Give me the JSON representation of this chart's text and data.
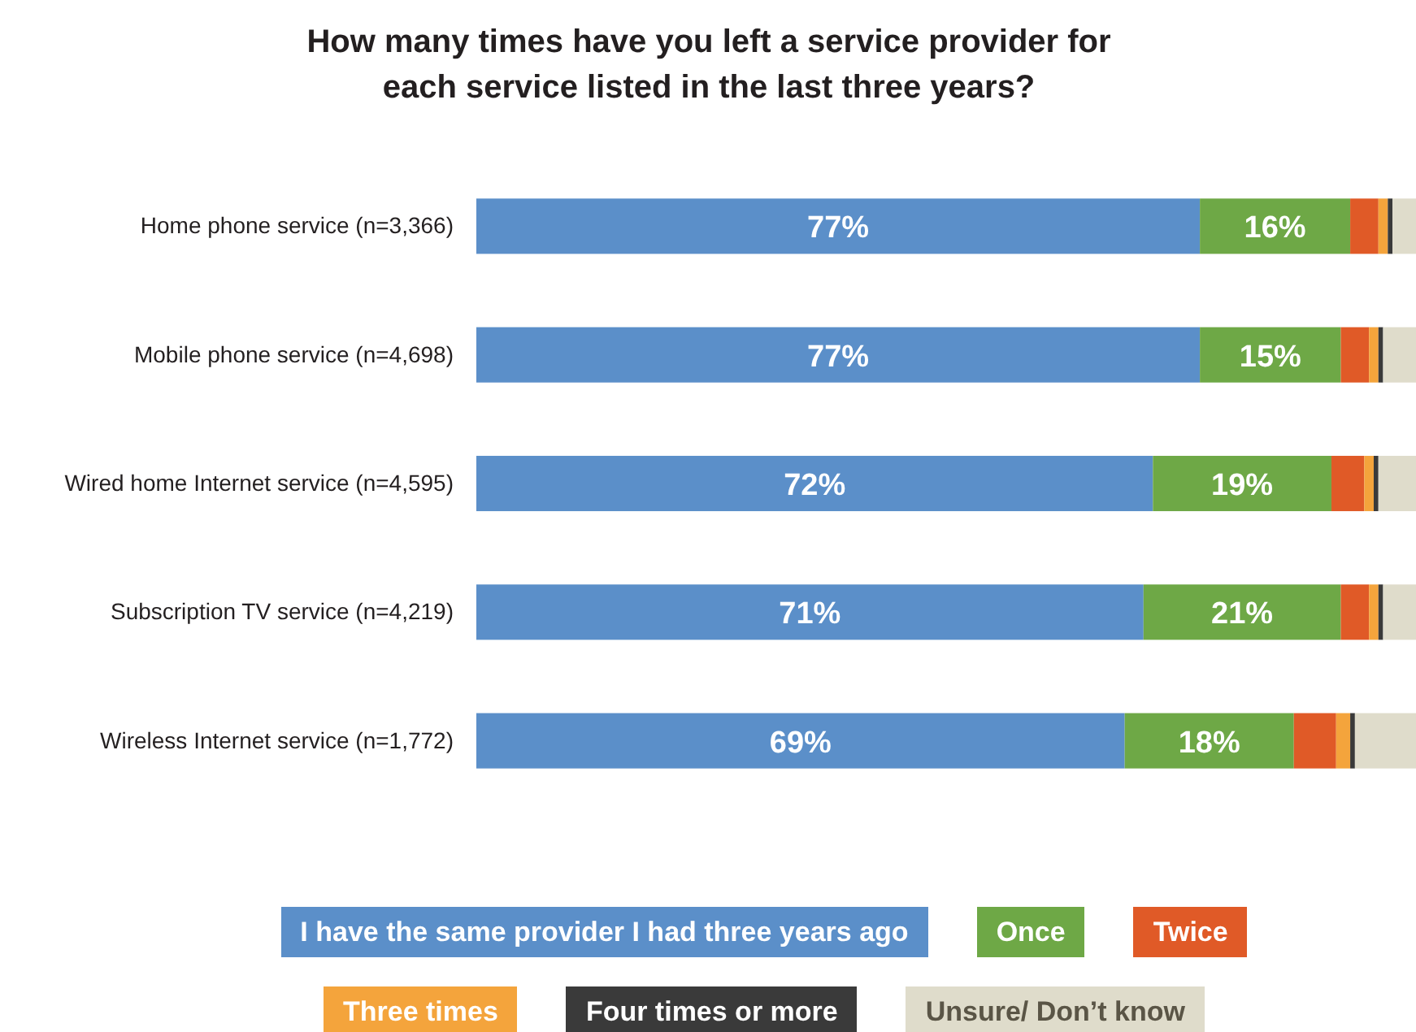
{
  "chart_data": {
    "type": "bar",
    "orientation": "horizontal",
    "stacked": true,
    "title": "How many times have you left a service provider for\neach service listed in the last three years?",
    "categories": [
      "Home phone service (n=3,366)",
      "Mobile phone service (n=4,698)",
      "Wired home Internet service (n=4,595)",
      "Subscription TV service (n=4,219)",
      "Wireless Internet service (n=1,772)"
    ],
    "series": [
      {
        "name": "I have the same provider I had three years ago",
        "color": "#5b8fc9",
        "values": [
          77,
          77,
          72,
          71,
          69
        ],
        "value_labels": [
          "77%",
          "77%",
          "72%",
          "71%",
          "69%"
        ]
      },
      {
        "name": "Once",
        "color": "#6ea846",
        "values": [
          16,
          15,
          19,
          21,
          18
        ],
        "value_labels": [
          "16%",
          "15%",
          "19%",
          "21%",
          "18%"
        ]
      },
      {
        "name": "Twice",
        "color": "#e05a27",
        "values": [
          3,
          3,
          3.5,
          3,
          4.5
        ]
      },
      {
        "name": "Three times",
        "color": "#f4a43c",
        "values": [
          1,
          1,
          1,
          1,
          1.5
        ]
      },
      {
        "name": "Four times or more",
        "color": "#3a3a3a",
        "values": [
          0.5,
          0.5,
          0.5,
          0.5,
          0.5
        ]
      },
      {
        "name": "Unsure/ Don’t know",
        "color": "#dfdccb",
        "values": [
          2.5,
          3.5,
          4,
          3.5,
          6.5
        ]
      }
    ],
    "xlim": [
      0,
      100
    ],
    "tick_labels": "y",
    "legend": "bottom"
  }
}
